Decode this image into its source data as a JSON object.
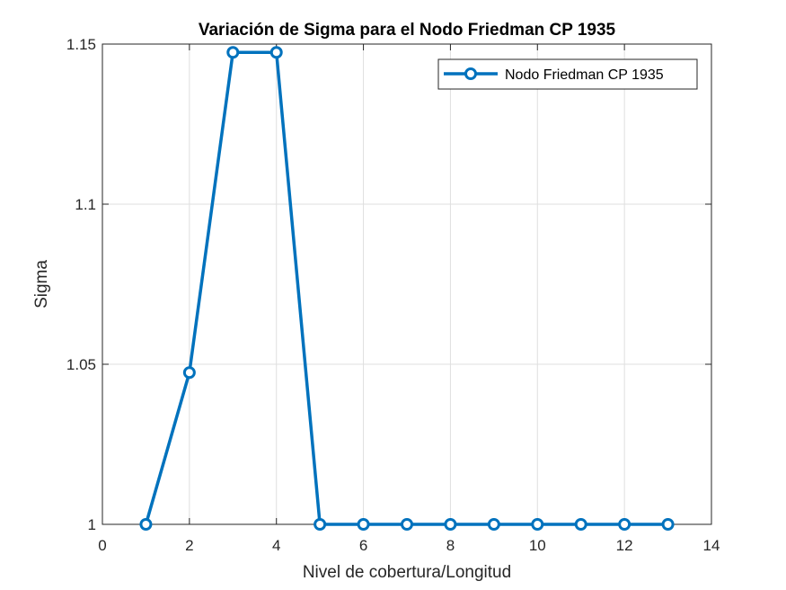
{
  "chart_data": {
    "type": "line",
    "title": "Variación de Sigma para el Nodo Friedman CP 1935",
    "xlabel": "Nivel de cobertura/Longitud",
    "ylabel": "Sigma",
    "xlim": [
      0,
      14
    ],
    "ylim": [
      1,
      1.15
    ],
    "xticks": [
      0,
      2,
      4,
      6,
      8,
      10,
      12,
      14
    ],
    "yticks": [
      1,
      1.05,
      1.1,
      1.15
    ],
    "xtick_labels": [
      "0",
      "2",
      "4",
      "6",
      "8",
      "10",
      "12",
      "14"
    ],
    "ytick_labels": [
      "1",
      "1.05",
      "1.1",
      "1.15"
    ],
    "grid": true,
    "legend_position": "top-right",
    "series": [
      {
        "name": "Nodo Friedman CP 1935",
        "color": "#0072BD",
        "marker": "circle",
        "x": [
          1,
          2,
          3,
          4,
          5,
          6,
          7,
          8,
          9,
          10,
          11,
          12,
          13
        ],
        "y": [
          1.0,
          1.0474,
          1.1474,
          1.1474,
          1.0,
          1.0,
          1.0,
          1.0,
          1.0,
          1.0,
          1.0,
          1.0,
          1.0
        ]
      }
    ]
  }
}
